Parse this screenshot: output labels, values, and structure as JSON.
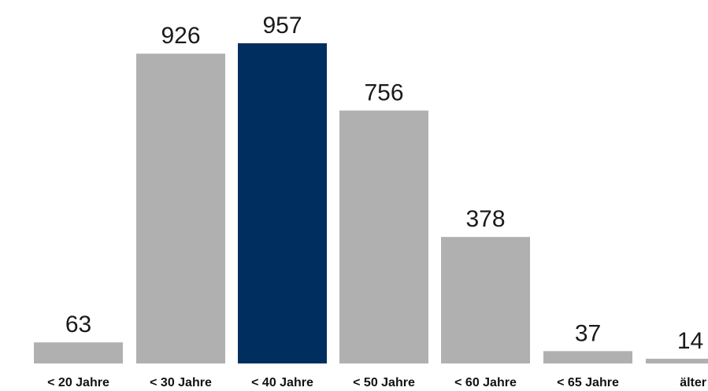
{
  "colors": {
    "default_bar": "#b0b0b1",
    "highlight_bar": "#002f5f",
    "label_text": "#111111",
    "value_text": "#1a1a1a"
  },
  "chart_data": {
    "type": "bar",
    "categories": [
      "< 20 Jahre",
      "< 30 Jahre",
      "< 40 Jahre",
      "< 50 Jahre",
      "< 60 Jahre",
      "< 65 Jahre",
      "älter"
    ],
    "values": [
      63,
      926,
      957,
      756,
      378,
      37,
      14
    ],
    "highlight_index": 2,
    "title": "",
    "xlabel": "",
    "ylabel": "",
    "ylim": [
      0,
      957
    ],
    "grid": false,
    "legend": "none"
  }
}
